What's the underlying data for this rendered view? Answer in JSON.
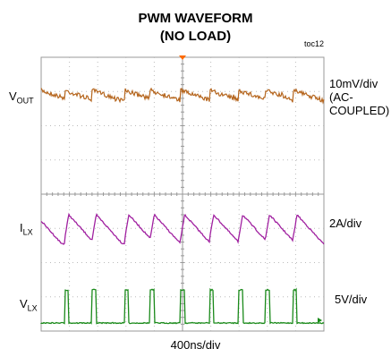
{
  "chart_data": {
    "type": "line",
    "title_line1": "PWM WAVEFORM",
    "title_line2": "(NO LOAD)",
    "figure_id": "toc12",
    "xlabel": "400ns/div",
    "grid": true,
    "grid_divisions": {
      "x": 10,
      "y": 8
    },
    "x_range_ns": [
      0,
      4000
    ],
    "channels": [
      {
        "label_main": "V",
        "label_sub": "OUT",
        "scale": [
          "10mV/div",
          "(AC-",
          "COUPLED)"
        ],
        "color": "#b5651d",
        "kind": "ripple"
      },
      {
        "label_main": "I",
        "label_sub": "LX",
        "scale": [
          "2A/div"
        ],
        "color": "#a020a0",
        "kind": "sawtooth"
      },
      {
        "label_main": "V",
        "label_sub": "LX",
        "scale": [
          "5V/div"
        ],
        "color": "#1a8a1a",
        "kind": "pulse"
      }
    ],
    "switching_period_ns": 380,
    "on_time_ns": 60,
    "pulse_times_ns": [
      330,
      720,
      1180,
      1540,
      1970,
      2380,
      2790,
      3170,
      3560
    ]
  }
}
